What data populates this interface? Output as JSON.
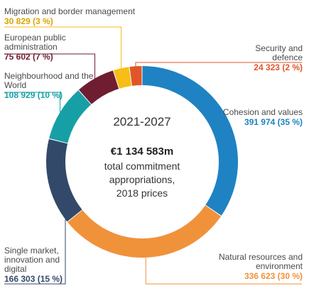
{
  "chart_data": {
    "type": "pie",
    "variant": "donut",
    "center_period": "2021-2027",
    "center_total": "€1 134 583m",
    "center_caption": [
      "total commitment",
      "appropriations,",
      "2018 prices"
    ],
    "slices": [
      {
        "name": "Cohesion and values",
        "value": 391974,
        "value_label": "391 974 (35 %)",
        "color": "#1f82c3"
      },
      {
        "name": "Natural resources and environment",
        "value": 336623,
        "value_label": "336 623 (30 %)",
        "color": "#f0923a"
      },
      {
        "name": "Single market, innovation and digital",
        "value": 166303,
        "value_label": "166 303 (15 %)",
        "color": "#33496a"
      },
      {
        "name": "Neighbourhood and the World",
        "value": 108929,
        "value_label": "108 929 (10 %)",
        "color": "#16a0a5"
      },
      {
        "name": "European public administration",
        "value": 75602,
        "value_label": "75 602 (7 %)",
        "color": "#6f1e32"
      },
      {
        "name": "Migration and border management",
        "value": 30829,
        "value_label": "30 829 (3 %)",
        "color": "#f6be16"
      },
      {
        "name": "Security and defence",
        "value": 24323,
        "value_label": "24 323 (2 %)",
        "color": "#e0562a"
      }
    ]
  }
}
